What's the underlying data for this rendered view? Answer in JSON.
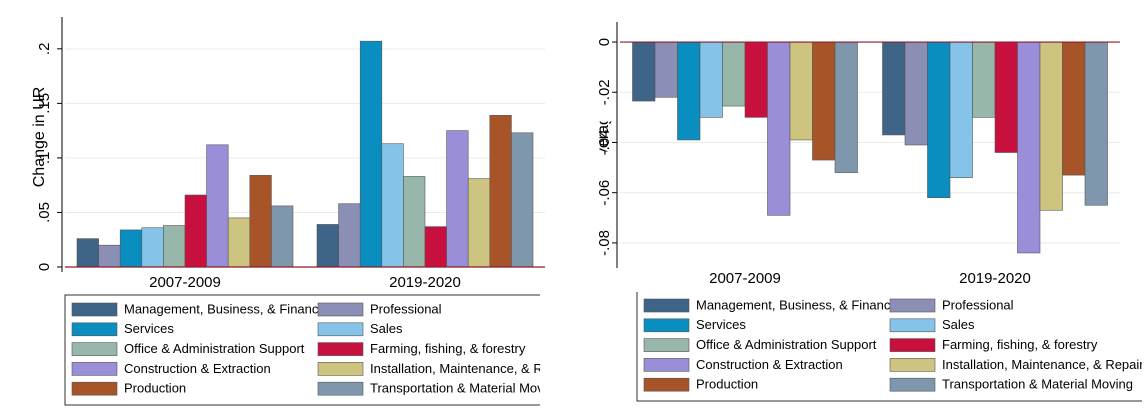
{
  "chart_data": [
    {
      "type": "bar",
      "y_label": "Change in UR",
      "categories": [
        "2007-2009",
        "2019-2020"
      ],
      "ylim": [
        0,
        0.22
      ],
      "yticks": [
        {
          "value": 0,
          "label": "0"
        },
        {
          "value": 0.05,
          "label": ".05"
        },
        {
          "value": 0.1,
          "label": ".1"
        },
        {
          "value": 0.15,
          "label": ".15"
        },
        {
          "value": 0.2,
          "label": ".2"
        }
      ],
      "grid": true,
      "series": [
        {
          "name": "Management, Business, & Financial",
          "color": "#3e6487",
          "values": [
            0.026,
            0.039
          ]
        },
        {
          "name": "Professional",
          "color": "#8c8fb5",
          "values": [
            0.02,
            0.058
          ]
        },
        {
          "name": "Services",
          "color": "#0a8ec0",
          "values": [
            0.034,
            0.207
          ]
        },
        {
          "name": "Sales",
          "color": "#85c3e8",
          "values": [
            0.036,
            0.113
          ]
        },
        {
          "name": "Office & Administration Support",
          "color": "#98b7ab",
          "values": [
            0.038,
            0.083
          ]
        },
        {
          "name": "Farming, fishing, & forestry",
          "color": "#c8103e",
          "values": [
            0.066,
            0.037
          ]
        },
        {
          "name": "Construction & Extraction",
          "color": "#9a8ed9",
          "values": [
            0.112,
            0.125
          ]
        },
        {
          "name": "Installation, Maintenance, & Repair",
          "color": "#cdc480",
          "values": [
            0.045,
            0.081
          ]
        },
        {
          "name": "Production",
          "color": "#a65428",
          "values": [
            0.084,
            0.139
          ]
        },
        {
          "name": "Transportation & Material Moving",
          "color": "#7f97ad",
          "values": [
            0.056,
            0.123
          ]
        }
      ]
    },
    {
      "type": "bar",
      "y_label": "Change in Log Average Hours Worked",
      "categories": [
        "2007-2009",
        "2019-2020"
      ],
      "ylim": [
        -0.088,
        0.004
      ],
      "yticks": [
        {
          "value": -0.08,
          "label": "-.08"
        },
        {
          "value": -0.06,
          "label": "-.06"
        },
        {
          "value": -0.04,
          "label": "-.04"
        },
        {
          "value": -0.02,
          "label": "-.02"
        },
        {
          "value": 0,
          "label": "0"
        }
      ],
      "grid": true,
      "series": [
        {
          "name": "Management, Business, & Financial",
          "color": "#3e6487",
          "values": [
            -0.0235,
            -0.037
          ]
        },
        {
          "name": "Professional",
          "color": "#8c8fb5",
          "values": [
            -0.022,
            -0.041
          ]
        },
        {
          "name": "Services",
          "color": "#0a8ec0",
          "values": [
            -0.039,
            -0.062
          ]
        },
        {
          "name": "Sales",
          "color": "#85c3e8",
          "values": [
            -0.03,
            -0.054
          ]
        },
        {
          "name": "Office & Administration Support",
          "color": "#98b7ab",
          "values": [
            -0.0255,
            -0.03
          ]
        },
        {
          "name": "Farming, fishing, & forestry",
          "color": "#c8103e",
          "values": [
            -0.03,
            -0.044
          ]
        },
        {
          "name": "Construction & Extraction",
          "color": "#9a8ed9",
          "values": [
            -0.069,
            -0.084
          ]
        },
        {
          "name": "Installation, Maintenance, & Repair",
          "color": "#cdc480",
          "values": [
            -0.039,
            -0.067
          ]
        },
        {
          "name": "Production",
          "color": "#a65428",
          "values": [
            -0.047,
            -0.053
          ]
        },
        {
          "name": "Transportation & Material Moving",
          "color": "#7f97ad",
          "values": [
            -0.052,
            -0.065
          ]
        }
      ]
    }
  ]
}
